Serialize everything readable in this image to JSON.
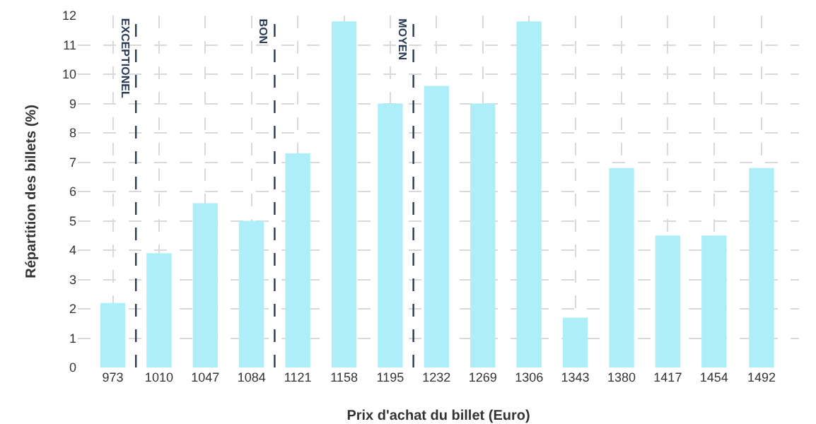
{
  "chart_data": {
    "type": "bar",
    "xlabel": "Prix d'achat du billet (Euro)",
    "ylabel": "Répartition des billets (%)",
    "x": [
      973,
      1010,
      1047,
      1084,
      1121,
      1158,
      1195,
      1232,
      1269,
      1306,
      1343,
      1380,
      1417,
      1454,
      1492
    ],
    "values": [
      2.2,
      3.9,
      5.6,
      5.0,
      7.3,
      11.8,
      9.0,
      9.6,
      9.0,
      11.8,
      1.7,
      6.8,
      4.5,
      4.5,
      6.8
    ],
    "color": "#aeeef8",
    "xlim": [
      945,
      1522
    ],
    "xticks": [
      973,
      1010,
      1047,
      1084,
      1121,
      1158,
      1195,
      1232,
      1269,
      1306,
      1343,
      1380,
      1417,
      1454,
      1492
    ],
    "ylim": [
      0,
      12
    ],
    "yticks": [
      0,
      1,
      2,
      3,
      4,
      5,
      6,
      7,
      8,
      9,
      10,
      11,
      12
    ],
    "grid": true,
    "ref_lines": [
      {
        "axis": "x",
        "value": 991.5,
        "label": "EXCEPTIONEL",
        "color": "#2b3a55",
        "line_style": "dashed"
      },
      {
        "axis": "x",
        "value": 1102.5,
        "label": "BON",
        "color": "#2b3a55",
        "line_style": "dashed"
      },
      {
        "axis": "x",
        "value": 1213.5,
        "label": "MOYEN",
        "color": "#2b3a55",
        "line_style": "dashed"
      }
    ]
  }
}
